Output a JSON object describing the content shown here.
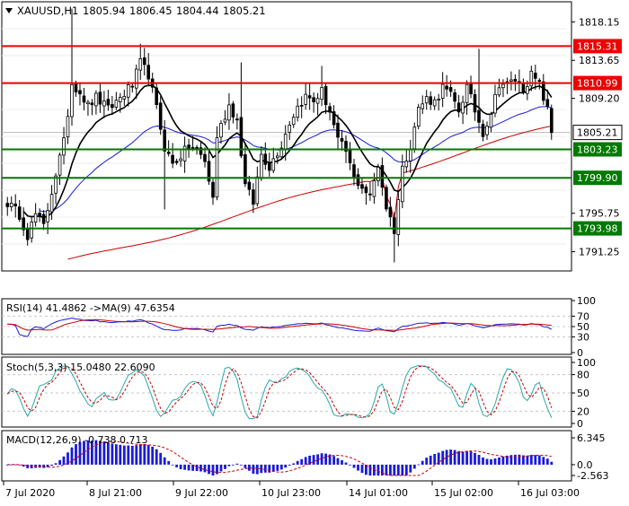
{
  "header": {
    "symbol": "XAUUSD,H1",
    "ohlc": [
      "1805.94",
      "1806.45",
      "1804.44",
      "1805.21"
    ]
  },
  "colors": {
    "candle": "#000000",
    "up_fill": "#ffffff",
    "down_fill": "#000000",
    "ma_fast": "#000000",
    "ma_mid": "#1a1adc",
    "ma_slow": "#cc0000",
    "resistance": "#ee0000",
    "support": "#007a00",
    "current_line": "#bbbbbb",
    "rsi_line": "#1a1adc",
    "rsi_signal": "#cc0000",
    "stoch_main": "#2aa8a8",
    "stoch_signal": "#cc0000",
    "macd_hist": "#1a1adc",
    "macd_signal": "#cc0000",
    "grid": "#c8c8c8"
  },
  "price_axis": {
    "ticks": [
      "1818.15",
      "1813.65",
      "1809.20",
      "1795.75",
      "1791.25"
    ]
  },
  "levels": {
    "resistance": [
      "1815.31",
      "1810.99"
    ],
    "support": [
      "1803.23",
      "1799.90",
      "1793.98"
    ],
    "current": "1805.21"
  },
  "rsi_panel": {
    "label": "RSI(14) 41.4862  ->MA(9) 47.6354",
    "ticks": [
      "100",
      "70",
      "50",
      "30",
      "0"
    ]
  },
  "stoch_panel": {
    "label": "Stoch(5,3,3) 15.0480 22.6090",
    "ticks": [
      "100",
      "80",
      "50",
      "20",
      "0"
    ]
  },
  "macd_panel": {
    "label": "MACD(12,26,9) -0.738 0.713",
    "ticks": [
      "6.345",
      "0.0",
      "-2.563"
    ]
  },
  "time_axis": {
    "labels": [
      "7 Jul 2020",
      "8 Jul 21:00",
      "9 Jul 22:00",
      "10 Jul 23:00",
      "14 Jul 01:00",
      "15 Jul 02:00",
      "16 Jul 03:00"
    ]
  },
  "chart_data": {
    "type": "candlestick",
    "symbol": "XAUUSD",
    "timeframe": "H1",
    "ylim": [
      1789.0,
      1820.5
    ],
    "anchors": [
      [
        0,
        1797.0
      ],
      [
        3,
        1795.6
      ],
      [
        5,
        1793.2
      ],
      [
        7,
        1795.6
      ],
      [
        9,
        1794.2
      ],
      [
        12,
        1800.4
      ],
      [
        14,
        1804.0
      ],
      [
        16,
        1811.0
      ],
      [
        18,
        1810.0
      ],
      [
        20,
        1808.3
      ],
      [
        22,
        1809.3
      ],
      [
        25,
        1807.9
      ],
      [
        28,
        1809.3
      ],
      [
        31,
        1810.8
      ],
      [
        33,
        1813.3
      ],
      [
        35,
        1812.0
      ],
      [
        37,
        1808.0
      ],
      [
        39,
        1803.5
      ],
      [
        41,
        1801.5
      ],
      [
        43,
        1802.5
      ],
      [
        45,
        1803.5
      ],
      [
        47,
        1803.2
      ],
      [
        49,
        1801.8
      ],
      [
        51,
        1797.5
      ],
      [
        52,
        1804.8
      ],
      [
        55,
        1808.4
      ],
      [
        57,
        1806.7
      ],
      [
        59,
        1799.0
      ],
      [
        61,
        1797.0
      ],
      [
        63,
        1802.7
      ],
      [
        65,
        1801.2
      ],
      [
        68,
        1803.8
      ],
      [
        70,
        1806.4
      ],
      [
        72,
        1808.2
      ],
      [
        74,
        1809.4
      ],
      [
        76,
        1808.9
      ],
      [
        78,
        1810.0
      ],
      [
        80,
        1807.7
      ],
      [
        82,
        1804.2
      ],
      [
        84,
        1803.0
      ],
      [
        86,
        1799.8
      ],
      [
        88,
        1798.9
      ],
      [
        90,
        1797.6
      ],
      [
        92,
        1801.4
      ],
      [
        94,
        1796.5
      ],
      [
        96,
        1793.8
      ],
      [
        98,
        1801.0
      ],
      [
        100,
        1803.8
      ],
      [
        102,
        1808.0
      ],
      [
        104,
        1809.2
      ],
      [
        106,
        1808.8
      ],
      [
        108,
        1810.5
      ],
      [
        110,
        1809.5
      ],
      [
        112,
        1807.8
      ],
      [
        114,
        1810.5
      ],
      [
        116,
        1807.8
      ],
      [
        118,
        1805.2
      ],
      [
        120,
        1807.6
      ],
      [
        122,
        1811.0
      ],
      [
        124,
        1810.8
      ],
      [
        126,
        1811.4
      ],
      [
        128,
        1810.4
      ],
      [
        130,
        1811.9
      ],
      [
        132,
        1810.8
      ],
      [
        134,
        1807.8
      ],
      [
        135,
        1805.2
      ]
    ],
    "bars": 136,
    "last_close": 1805.21
  }
}
